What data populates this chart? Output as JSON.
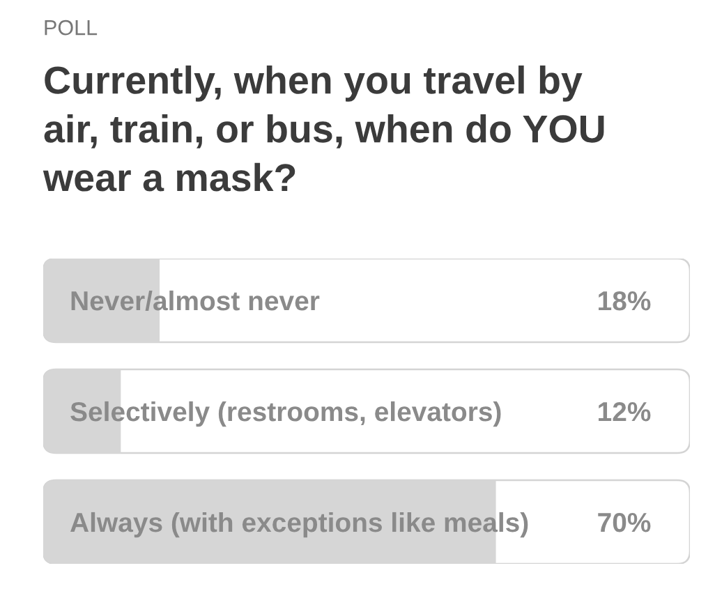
{
  "chart_data": {
    "type": "bar",
    "orientation": "horizontal",
    "title": "Currently, when you travel by air, train, or bus, when do YOU wear a mask?",
    "annotations": [
      "POLL"
    ],
    "categories": [
      "Never/almost never",
      "Selectively (restrooms, elevators)",
      "Always (with exceptions like meals)"
    ],
    "values": [
      18,
      12,
      70
    ],
    "value_labels": [
      "18%",
      "12%",
      "70%"
    ],
    "color": "#d6d6d6",
    "xlim": [
      0,
      100
    ],
    "tick_labels": "y"
  }
}
